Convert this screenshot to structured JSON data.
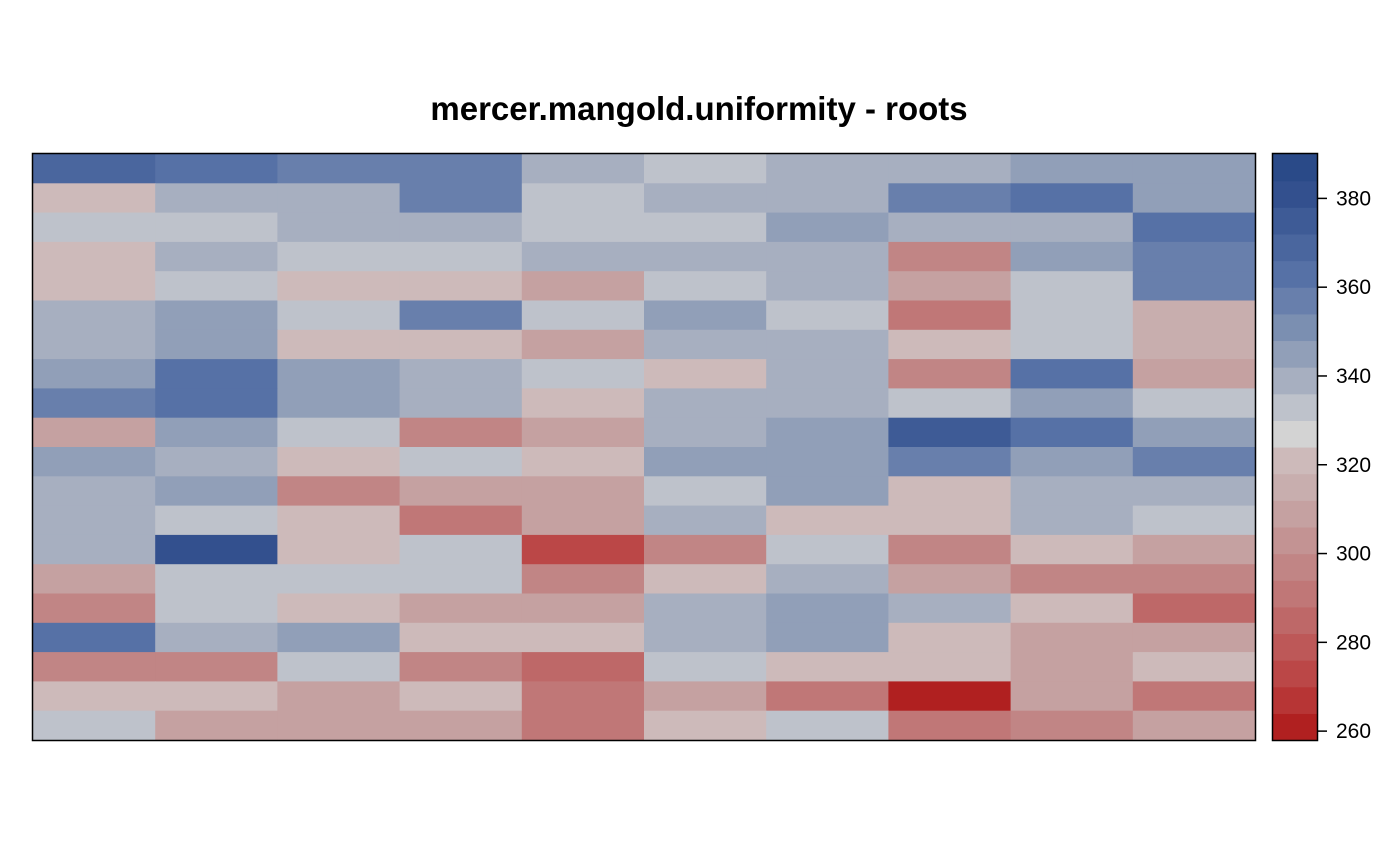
{
  "chart_data": {
    "type": "heatmap",
    "title": "mercer.mangold.uniformity - roots",
    "xlabel": "",
    "ylabel": "",
    "n_cols": 10,
    "n_rows": 20,
    "value_range": [
      258,
      390
    ],
    "colorbar": {
      "placement": "right",
      "ticks": [
        260,
        280,
        300,
        320,
        340,
        360,
        380
      ],
      "breaks": [
        258,
        264,
        270,
        276,
        282,
        288,
        294,
        300,
        306,
        312,
        318,
        324,
        330,
        336,
        342,
        348,
        354,
        360,
        366,
        372,
        378,
        384,
        390
      ],
      "colors": [
        "#b02020",
        "#b73535",
        "#bb4747",
        "#bd5858",
        "#be6868",
        "#c07777",
        "#c18585",
        "#c39393",
        "#c5a1a1",
        "#c8aeae",
        "#cdbaba",
        "#d3d3d3",
        "#bec2cb",
        "#a7afc0",
        "#919fb8",
        "#7b8fb1",
        "#687fac",
        "#5671a6",
        "#4a669e",
        "#3e5b96",
        "#33508e",
        "#2a4a88"
      ]
    },
    "values": [
      [
        371,
        364,
        356,
        358,
        337,
        331,
        339,
        338,
        344,
        346
      ],
      [
        318,
        338,
        338,
        358,
        330,
        337,
        338,
        356,
        361,
        346
      ],
      [
        330,
        330,
        338,
        338,
        330,
        330,
        347,
        341,
        339,
        364
      ],
      [
        318,
        338,
        330,
        330,
        337,
        338,
        339,
        298,
        344,
        357
      ],
      [
        318,
        330,
        318,
        318,
        310,
        330,
        339,
        310,
        330,
        357
      ],
      [
        339,
        346,
        330,
        356,
        330,
        345,
        330,
        290,
        330,
        316
      ],
      [
        339,
        346,
        318,
        318,
        310,
        339,
        339,
        318,
        330,
        316
      ],
      [
        347,
        363,
        346,
        337,
        330,
        318,
        339,
        298,
        363,
        308
      ],
      [
        354,
        363,
        346,
        337,
        318,
        339,
        339,
        330,
        345,
        330
      ],
      [
        308,
        346,
        330,
        298,
        310,
        339,
        346,
        372,
        365,
        347
      ],
      [
        346,
        338,
        318,
        330,
        318,
        346,
        346,
        355,
        345,
        357
      ],
      [
        339,
        345,
        298,
        310,
        310,
        330,
        346,
        318,
        339,
        338
      ],
      [
        339,
        330,
        318,
        290,
        310,
        339,
        318,
        318,
        339,
        330
      ],
      [
        339,
        382,
        318,
        330,
        272,
        298,
        330,
        298,
        318,
        308
      ],
      [
        308,
        330,
        330,
        330,
        298,
        318,
        339,
        310,
        298,
        298
      ],
      [
        298,
        330,
        318,
        310,
        310,
        339,
        346,
        339,
        318,
        282
      ],
      [
        364,
        339,
        346,
        318,
        318,
        339,
        346,
        318,
        310,
        310
      ],
      [
        298,
        298,
        330,
        298,
        282,
        330,
        318,
        318,
        310,
        318
      ],
      [
        318,
        318,
        310,
        318,
        290,
        310,
        290,
        262,
        310,
        290
      ],
      [
        330,
        310,
        310,
        310,
        290,
        318,
        330,
        290,
        298,
        308
      ]
    ]
  }
}
